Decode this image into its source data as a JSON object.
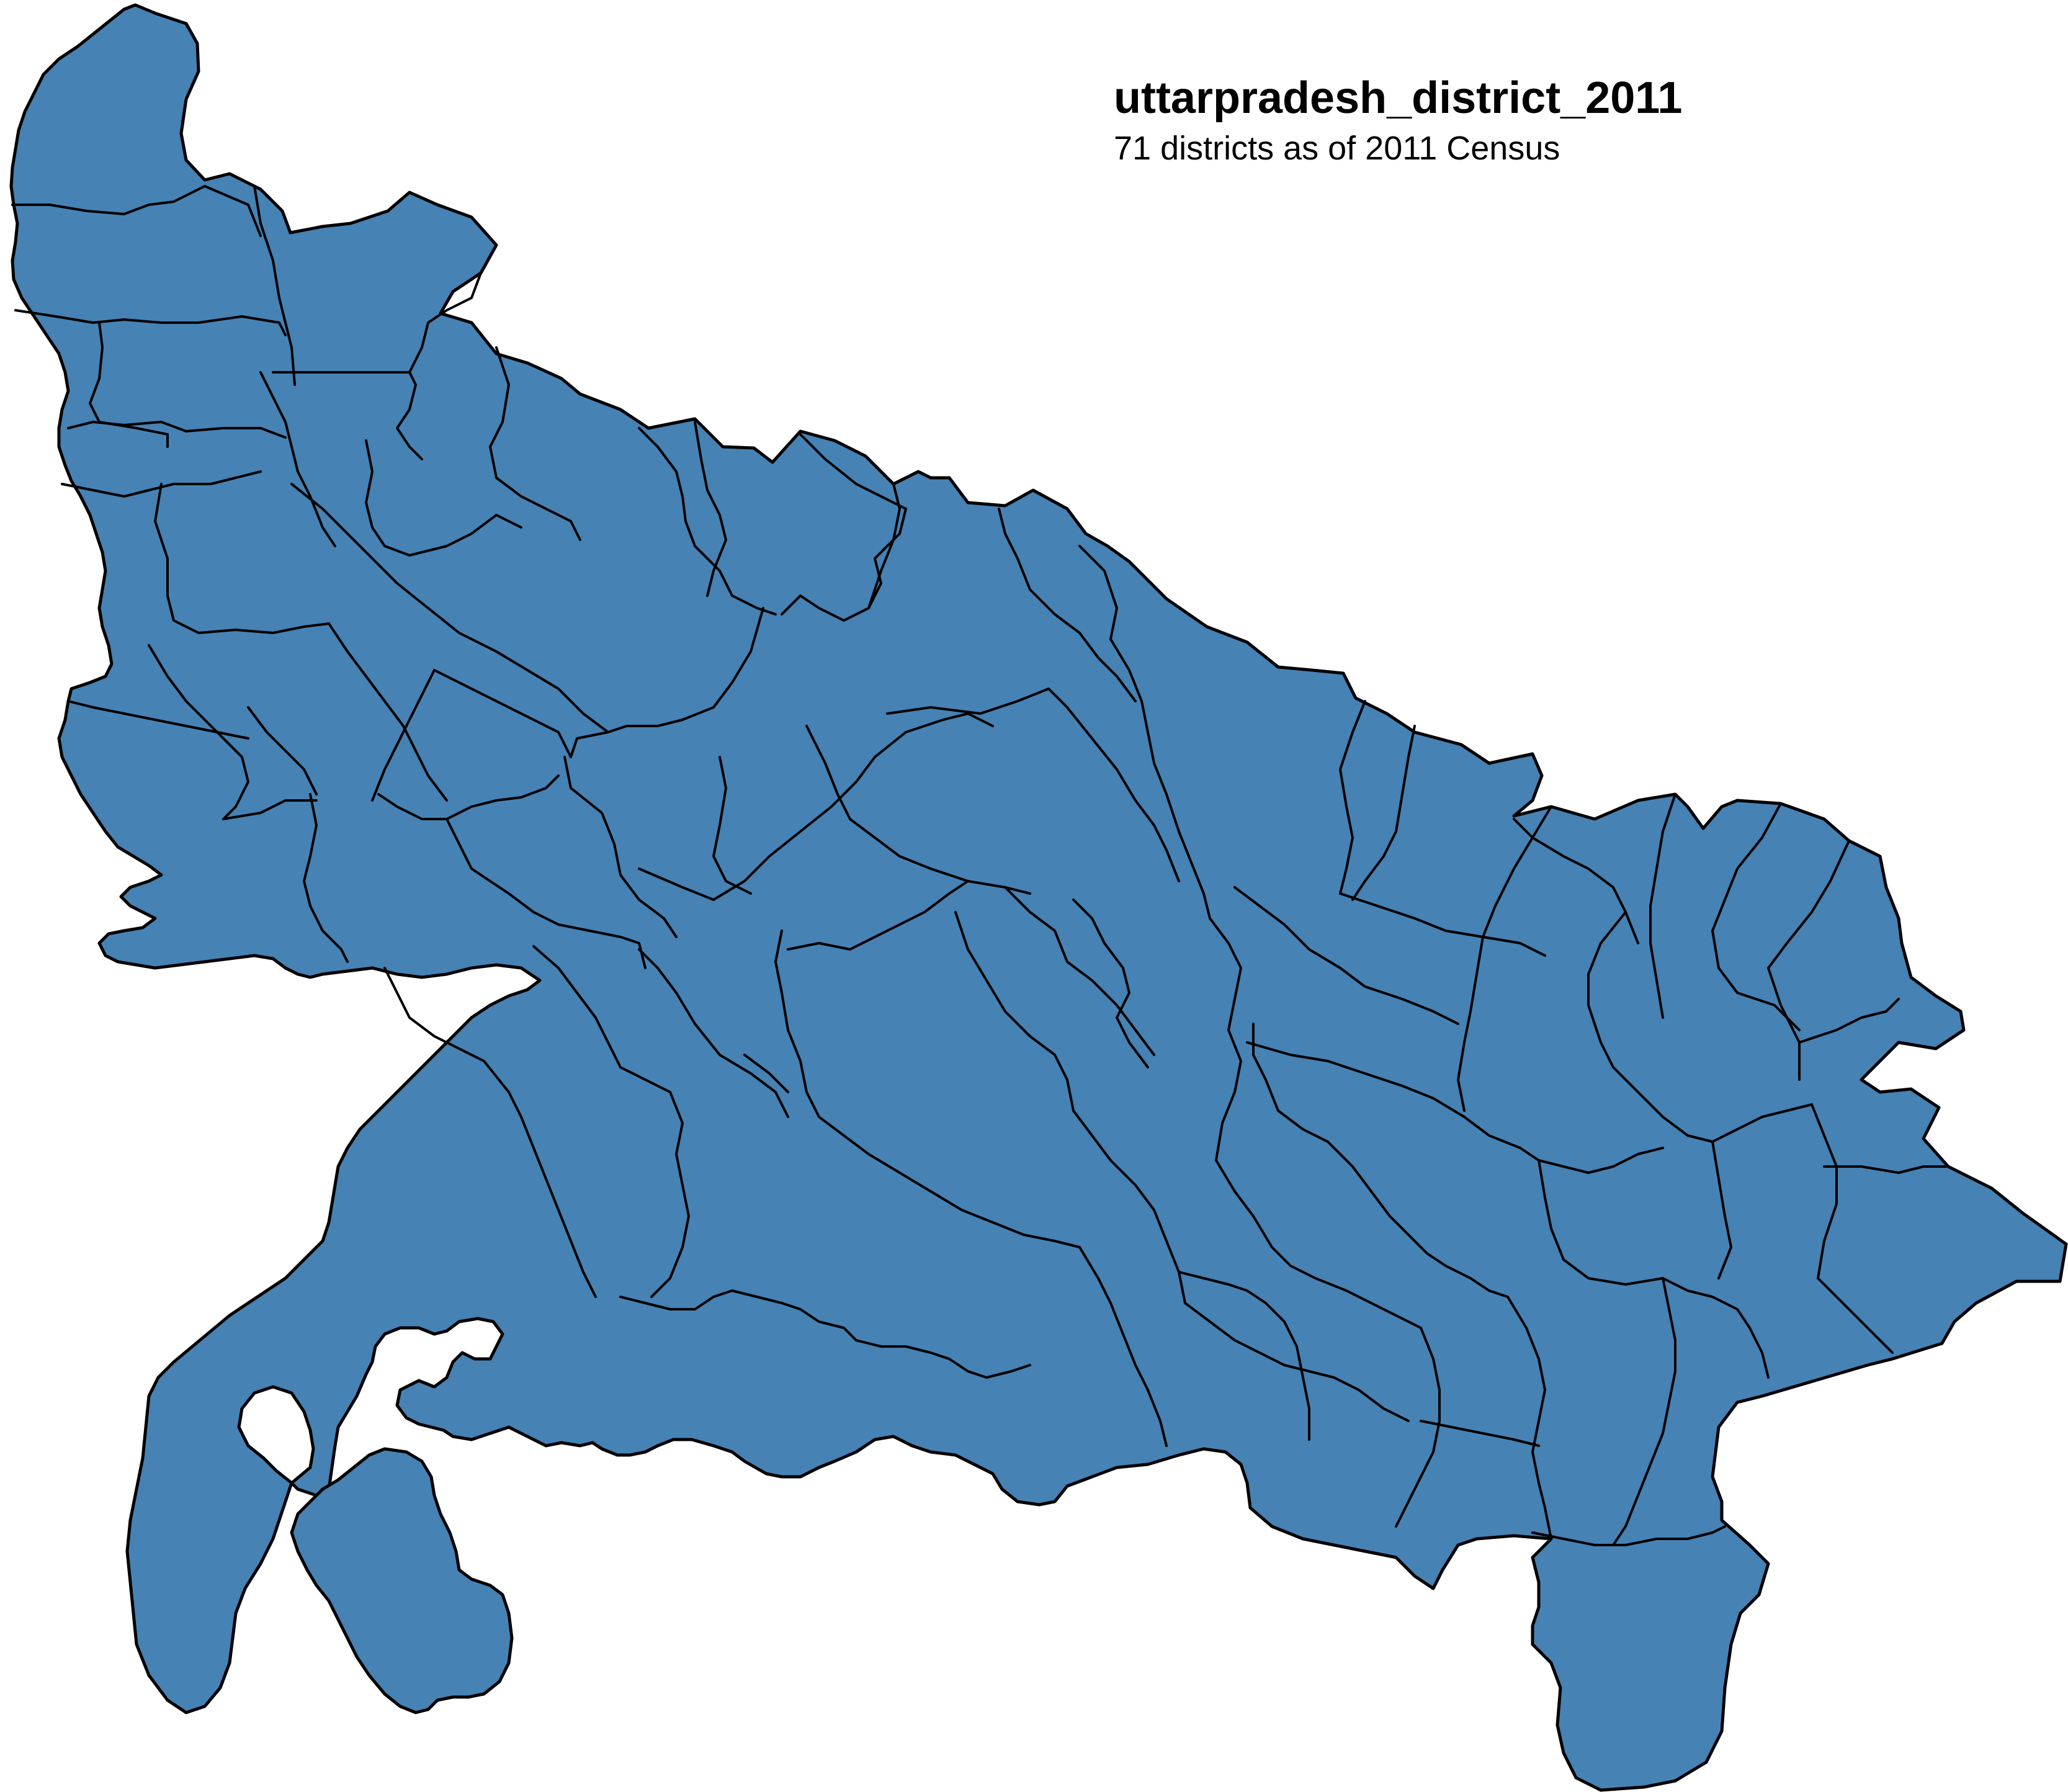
{
  "map": {
    "title": "uttarpradesh_district_2011",
    "subtitle": "71 districts as of 2011 Census",
    "fill_color": "#4682b4",
    "border_color": "#000000",
    "background_color": "#ffffff"
  }
}
